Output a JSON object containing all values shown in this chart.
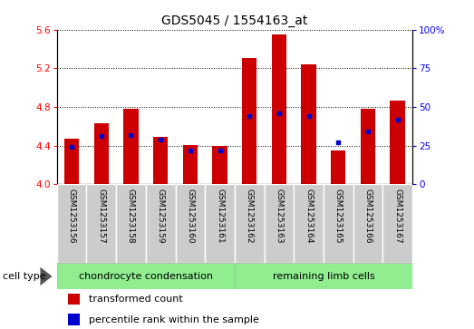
{
  "title": "GDS5045 / 1554163_at",
  "samples": [
    "GSM1253156",
    "GSM1253157",
    "GSM1253158",
    "GSM1253159",
    "GSM1253160",
    "GSM1253161",
    "GSM1253162",
    "GSM1253163",
    "GSM1253164",
    "GSM1253165",
    "GSM1253166",
    "GSM1253167"
  ],
  "transformed_count": [
    4.47,
    4.63,
    4.78,
    4.49,
    4.41,
    4.4,
    5.31,
    5.55,
    5.24,
    4.35,
    4.78,
    4.87
  ],
  "percentile_rank": [
    24,
    31,
    32,
    29,
    22,
    22,
    44,
    46,
    44,
    27,
    34,
    42
  ],
  "ymin": 4.0,
  "ymax": 5.6,
  "yticks_left": [
    4.0,
    4.4,
    4.8,
    5.2,
    5.6
  ],
  "yticks_right": [
    0,
    25,
    50,
    75,
    100
  ],
  "bar_color": "#cc0000",
  "blue_color": "#0000cc",
  "group1_label": "chondrocyte condensation",
  "group2_label": "remaining limb cells",
  "group1_count": 6,
  "cell_type_label": "cell type",
  "legend1": "transformed count",
  "legend2": "percentile rank within the sample",
  "green_bg": "#90ee90",
  "gray_bg": "#cccccc",
  "title_fontsize": 10,
  "tick_fontsize": 7.5,
  "label_fontsize": 6.5,
  "bar_width": 0.5
}
